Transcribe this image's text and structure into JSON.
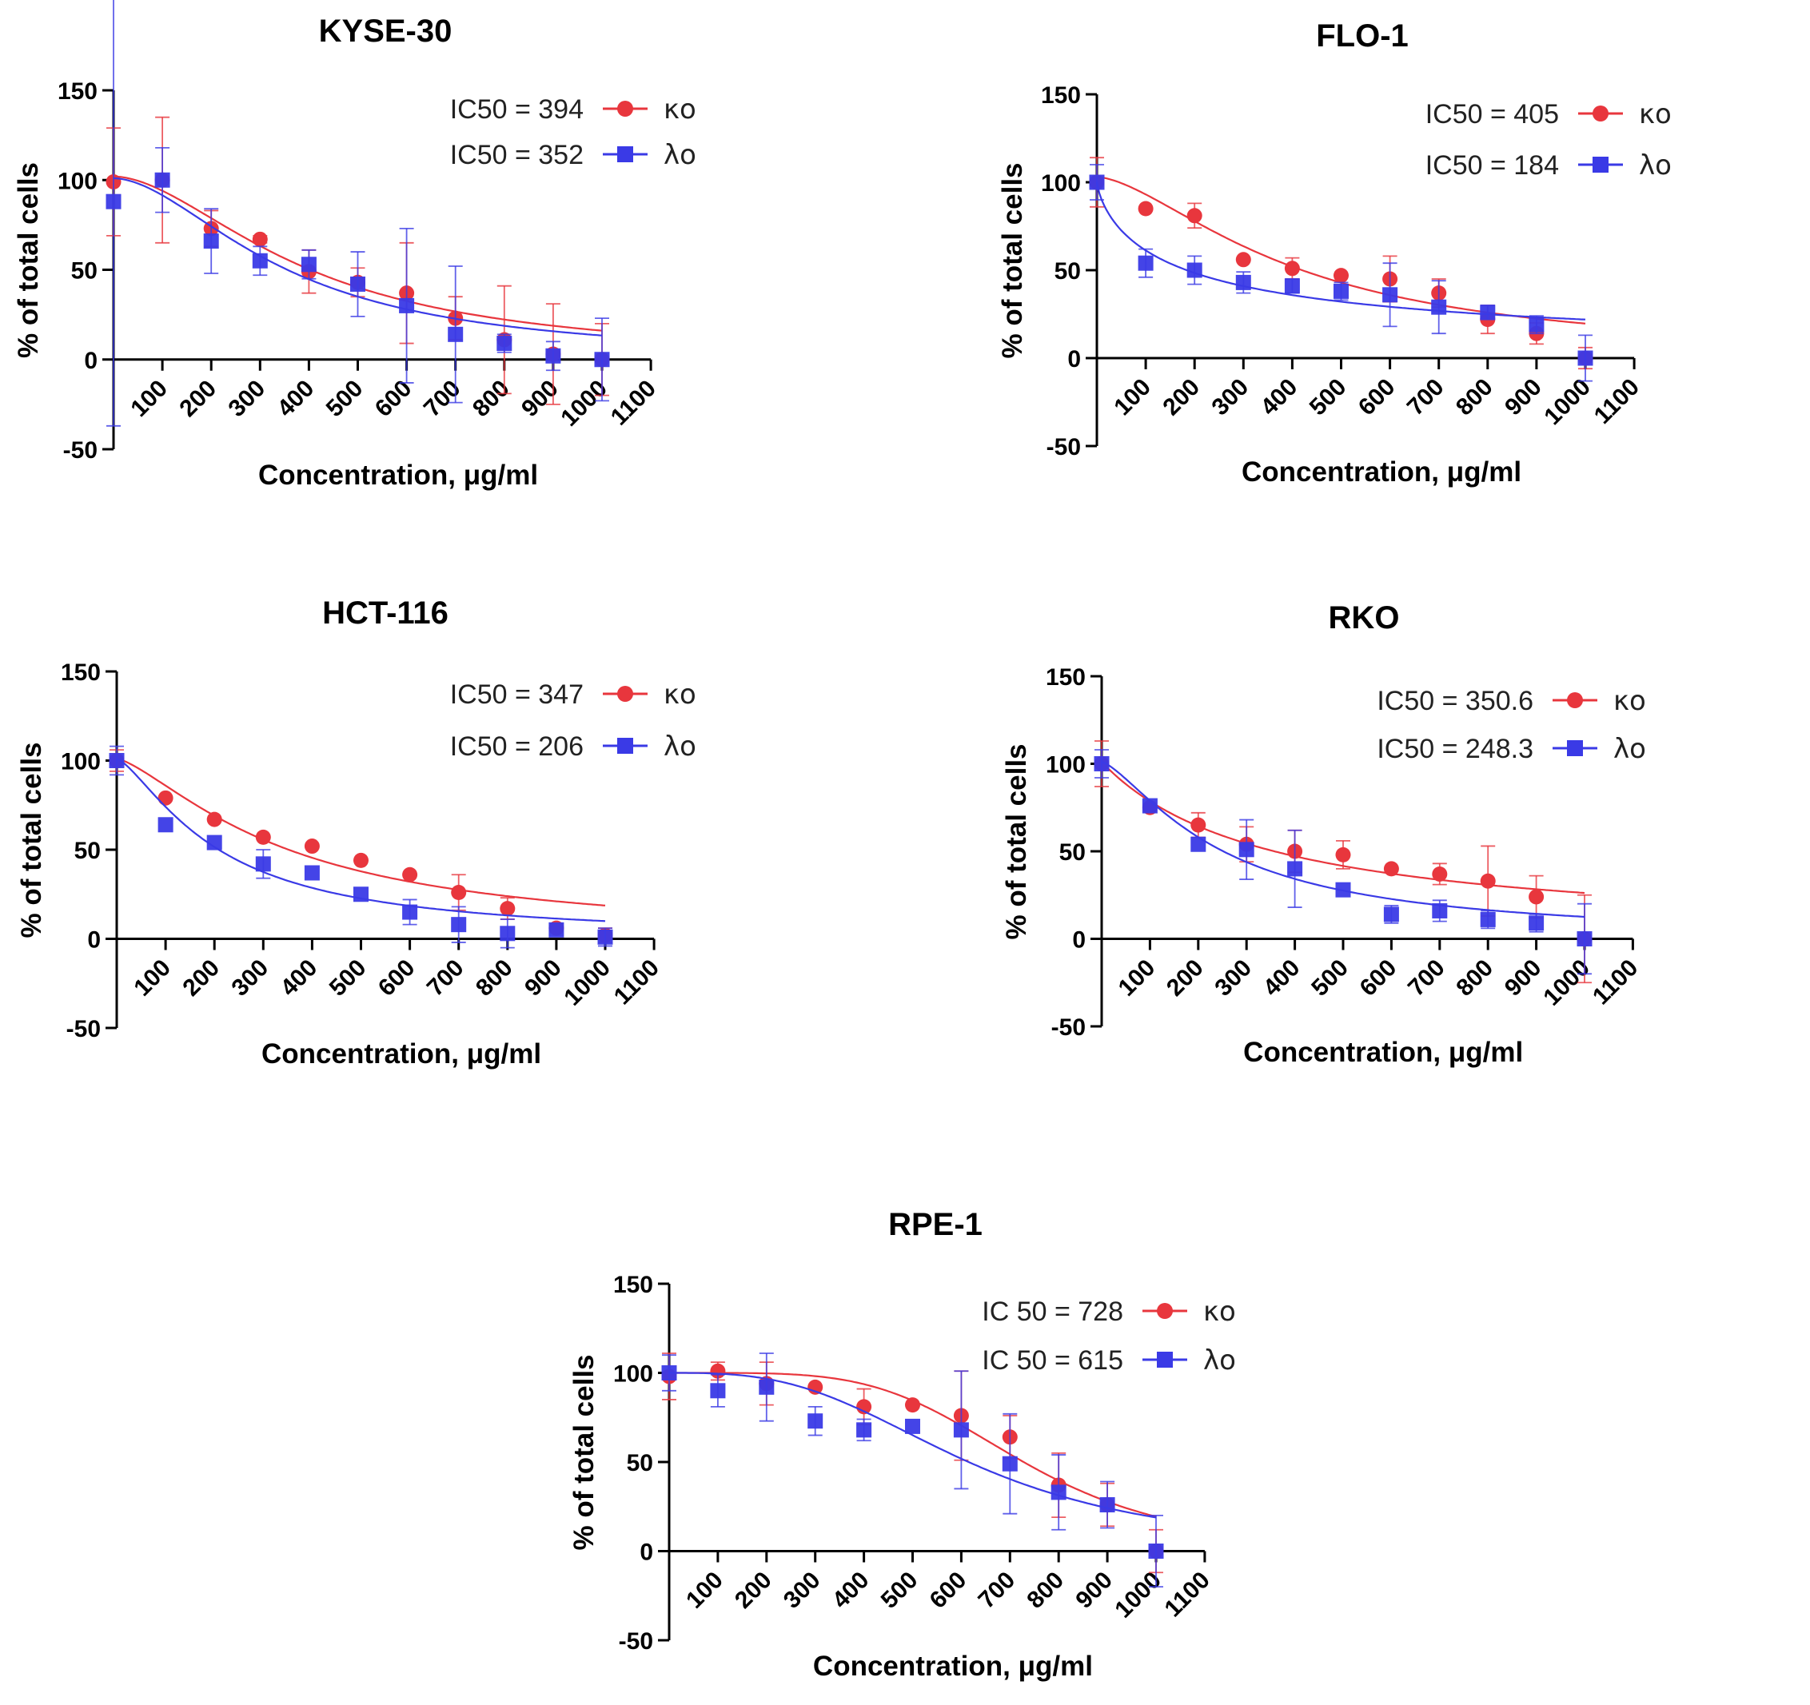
{
  "chart_data": [
    {
      "type": "scatter",
      "title": "KYSE-30",
      "xlabel": "Concentration, μg/ml",
      "ylabel": "% of total cells",
      "xlim": [
        0,
        1100
      ],
      "ylim": [
        -50,
        150
      ],
      "yticks": [
        -50,
        0,
        50,
        100,
        150
      ],
      "xticks": [
        100,
        200,
        300,
        400,
        500,
        600,
        700,
        800,
        900,
        1000,
        1100
      ],
      "colors": {
        "ko": "#e8363d",
        "lo": "#3a3ae6"
      },
      "series": [
        {
          "name": "κo",
          "ic50_label": "IC50 = 394",
          "ic50": 394,
          "marker": "circle",
          "x": [
            0,
            100,
            200,
            300,
            400,
            500,
            600,
            700,
            800,
            900,
            1000
          ],
          "y": [
            99,
            100,
            73,
            67,
            49,
            43,
            37,
            23,
            11,
            3,
            0
          ],
          "err": [
            30,
            35,
            10,
            2,
            12,
            8,
            28,
            12,
            30,
            28,
            20
          ],
          "fit": {
            "top": 102,
            "bottom": 0,
            "ec50": 394,
            "hill": 1.8
          }
        },
        {
          "name": "λo",
          "ic50_label": "IC50 = 352",
          "ic50": 352,
          "marker": "square",
          "x": [
            0,
            100,
            200,
            300,
            400,
            500,
            600,
            700,
            800,
            900,
            1000
          ],
          "y": [
            88,
            100,
            66,
            55,
            53,
            42,
            30,
            14,
            9,
            2,
            0
          ],
          "err": [
            125,
            18,
            18,
            8,
            8,
            18,
            43,
            38,
            5,
            8,
            23
          ],
          "fit": {
            "top": 101,
            "bottom": 0,
            "ec50": 352,
            "hill": 1.8
          }
        }
      ]
    },
    {
      "type": "scatter",
      "title": "FLO-1",
      "xlabel": "Concentration, μg/ml",
      "ylabel": "% of total cells",
      "xlim": [
        0,
        1100
      ],
      "ylim": [
        -50,
        150
      ],
      "yticks": [
        -50,
        0,
        50,
        100,
        150
      ],
      "xticks": [
        100,
        200,
        300,
        400,
        500,
        600,
        700,
        800,
        900,
        1000,
        1100
      ],
      "colors": {
        "ko": "#e8363d",
        "lo": "#3a3ae6"
      },
      "series": [
        {
          "name": "κo",
          "ic50_label": "IC50 = 405",
          "ic50": 405,
          "marker": "circle",
          "x": [
            0,
            100,
            200,
            300,
            400,
            500,
            600,
            700,
            800,
            900,
            1000
          ],
          "y": [
            100,
            85,
            81,
            56,
            51,
            47,
            45,
            37,
            22,
            14,
            0
          ],
          "err": [
            14,
            0,
            7,
            0,
            6,
            0,
            13,
            8,
            8,
            6,
            6
          ],
          "fit": {
            "top": 103,
            "bottom": 0,
            "ec50": 405,
            "hill": 1.6
          }
        },
        {
          "name": "λo",
          "ic50_label": "IC50 = 184",
          "ic50": 184,
          "marker": "square",
          "x": [
            0,
            100,
            200,
            300,
            400,
            500,
            600,
            700,
            800,
            900,
            1000
          ],
          "y": [
            100,
            54,
            50,
            43,
            41,
            38,
            36,
            29,
            26,
            19,
            0
          ],
          "err": [
            10,
            8,
            8,
            6,
            4,
            5,
            18,
            15,
            4,
            5,
            13
          ],
          "fit": {
            "top": 100,
            "bottom": 0,
            "ec50": 184,
            "hill": 0.75
          }
        }
      ]
    },
    {
      "type": "scatter",
      "title": "HCT-116",
      "xlabel": "Concentration, μg/ml",
      "ylabel": "% of total cells",
      "xlim": [
        0,
        1100
      ],
      "ylim": [
        -50,
        150
      ],
      "yticks": [
        -50,
        0,
        50,
        100,
        150
      ],
      "xticks": [
        100,
        200,
        300,
        400,
        500,
        600,
        700,
        800,
        900,
        1000,
        1100
      ],
      "colors": {
        "ko": "#e8363d",
        "lo": "#3a3ae6"
      },
      "series": [
        {
          "name": "κo",
          "ic50_label": "IC50 = 347",
          "ic50": 347,
          "marker": "circle",
          "x": [
            0,
            100,
            200,
            300,
            400,
            500,
            600,
            700,
            800,
            900,
            1000
          ],
          "y": [
            100,
            79,
            67,
            57,
            52,
            44,
            36,
            26,
            17,
            6,
            2
          ],
          "err": [
            6,
            0,
            0,
            0,
            0,
            0,
            0,
            10,
            6,
            0,
            4
          ],
          "fit": {
            "top": 101,
            "bottom": 0,
            "ec50": 347,
            "hill": 1.4
          }
        },
        {
          "name": "λo",
          "ic50_label": "IC50 = 206",
          "ic50": 206,
          "marker": "square",
          "x": [
            0,
            100,
            200,
            300,
            400,
            500,
            600,
            700,
            800,
            900,
            1000
          ],
          "y": [
            100,
            64,
            54,
            42,
            37,
            25,
            15,
            8,
            3,
            5,
            1
          ],
          "err": [
            8,
            0,
            0,
            8,
            0,
            0,
            7,
            10,
            8,
            0,
            5
          ],
          "fit": {
            "top": 101,
            "bottom": 0,
            "ec50": 206,
            "hill": 1.4
          }
        }
      ]
    },
    {
      "type": "scatter",
      "title": "RKO",
      "xlabel": "Concentration, μg/ml",
      "ylabel": "% of total cells",
      "xlim": [
        0,
        1100
      ],
      "ylim": [
        -50,
        150
      ],
      "yticks": [
        -50,
        0,
        50,
        100,
        150
      ],
      "xticks": [
        100,
        200,
        300,
        400,
        500,
        600,
        700,
        800,
        900,
        1000,
        1100
      ],
      "colors": {
        "ko": "#e8363d",
        "lo": "#3a3ae6"
      },
      "series": [
        {
          "name": "κo",
          "ic50_label": "IC50 = 350.6",
          "ic50": 350.6,
          "marker": "circle",
          "x": [
            0,
            100,
            200,
            300,
            400,
            500,
            600,
            700,
            800,
            900,
            1000
          ],
          "y": [
            100,
            75,
            65,
            54,
            50,
            48,
            40,
            37,
            33,
            24,
            0
          ],
          "err": [
            13,
            0,
            7,
            10,
            12,
            8,
            0,
            6,
            20,
            12,
            25
          ],
          "fit": {
            "top": 101,
            "bottom": 0,
            "ec50": 350.6,
            "hill": 1.0
          }
        },
        {
          "name": "λo",
          "ic50_label": "IC50 = 248.3",
          "ic50": 248.3,
          "marker": "square",
          "x": [
            0,
            100,
            200,
            300,
            400,
            500,
            600,
            700,
            800,
            900,
            1000
          ],
          "y": [
            100,
            76,
            54,
            51,
            40,
            28,
            14,
            16,
            11,
            9,
            0
          ],
          "err": [
            8,
            0,
            0,
            17,
            22,
            0,
            5,
            6,
            5,
            5,
            20
          ],
          "fit": {
            "top": 101,
            "bottom": 0,
            "ec50": 248.3,
            "hill": 1.4
          }
        }
      ]
    },
    {
      "type": "scatter",
      "title": "RPE-1",
      "xlabel": "Concentration, μg/ml",
      "ylabel": "% of total cells",
      "xlim": [
        0,
        1100
      ],
      "ylim": [
        -50,
        150
      ],
      "yticks": [
        -50,
        0,
        50,
        100,
        150
      ],
      "xticks": [
        100,
        200,
        300,
        400,
        500,
        600,
        700,
        800,
        900,
        1000,
        1100
      ],
      "colors": {
        "ko": "#e8363d",
        "lo": "#3a3ae6"
      },
      "series": [
        {
          "name": "κo",
          "ic50_label": "IC 50 = 728",
          "ic50": 728,
          "marker": "circle",
          "x": [
            0,
            100,
            200,
            300,
            400,
            500,
            600,
            700,
            800,
            900,
            1000
          ],
          "y": [
            98,
            101,
            94,
            92,
            81,
            82,
            76,
            64,
            37,
            26,
            0
          ],
          "err": [
            13,
            5,
            12,
            0,
            10,
            0,
            25,
            12,
            18,
            12,
            12
          ],
          "fit": {
            "top": 100,
            "bottom": 0,
            "ec50": 728,
            "hill": 4.5
          }
        },
        {
          "name": "λo",
          "ic50_label": "IC 50 = 615",
          "ic50": 615,
          "marker": "square",
          "x": [
            0,
            100,
            200,
            300,
            400,
            500,
            600,
            700,
            800,
            900,
            1000
          ],
          "y": [
            100,
            90,
            92,
            73,
            68,
            70,
            68,
            49,
            33,
            26,
            0
          ],
          "err": [
            10,
            9,
            19,
            8,
            6,
            0,
            33,
            28,
            21,
            13,
            20
          ],
          "fit": {
            "top": 100,
            "bottom": 0,
            "ec50": 615,
            "hill": 3.0
          }
        }
      ]
    }
  ]
}
